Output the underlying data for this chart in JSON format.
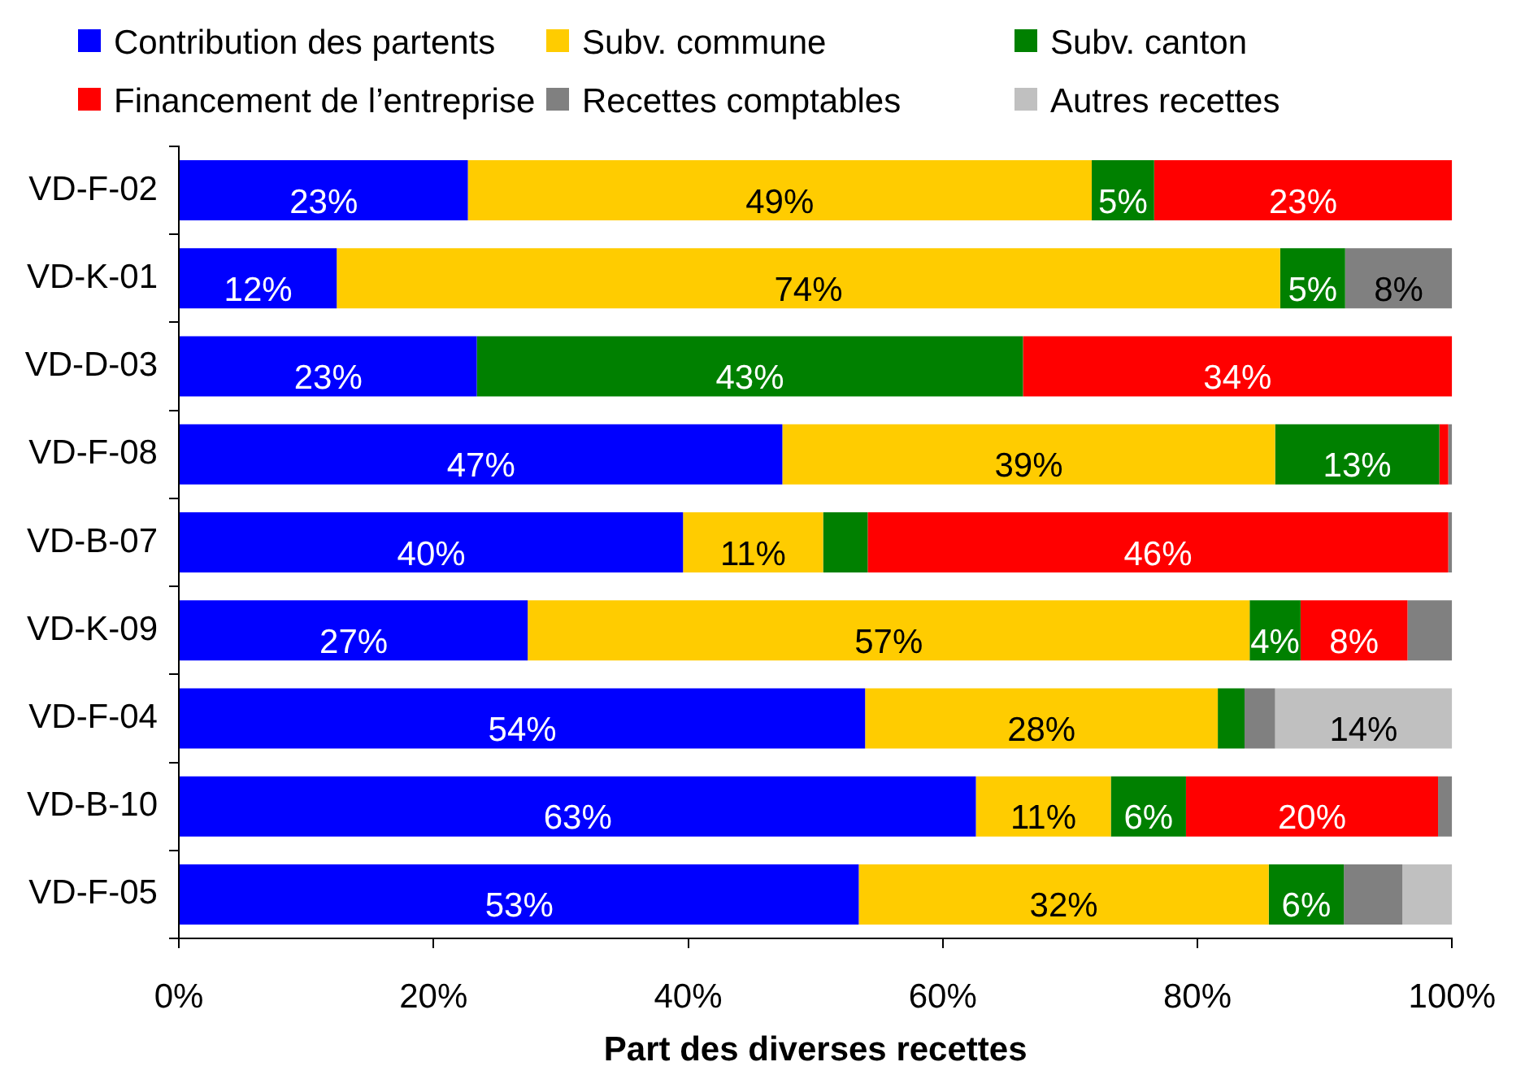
{
  "chart_data": {
    "type": "bar",
    "orientation": "horizontal",
    "stacked": true,
    "xlabel": "Part des diverses recettes",
    "legend": "top",
    "categories": [
      "VD-F-02",
      "VD-K-01",
      "VD-D-03",
      "VD-F-08",
      "VD-B-07",
      "VD-K-09",
      "VD-F-04",
      "VD-B-10",
      "VD-F-05"
    ],
    "xlim": [
      0,
      100
    ],
    "xticks": [
      {
        "value": 0,
        "label": "0%"
      },
      {
        "value": 20,
        "label": "20%"
      },
      {
        "value": 40,
        "label": "40%"
      },
      {
        "value": 60,
        "label": "60%"
      },
      {
        "value": 80,
        "label": "80%"
      },
      {
        "value": 100,
        "label": "100%"
      }
    ],
    "series": [
      {
        "name": "Contribution des partents",
        "color": "#0000ff",
        "values": [
          22.7,
          12.4,
          23.4,
          47.4,
          39.6,
          27.4,
          53.9,
          62.6,
          53.4
        ],
        "value_labels": [
          "23%",
          "12%",
          "23%",
          "47%",
          "40%",
          "27%",
          "54%",
          "63%",
          "53%"
        ]
      },
      {
        "name": "Subv. commune",
        "color": "#ffcc00",
        "values": [
          49,
          74.1,
          null,
          38.7,
          11,
          56.7,
          27.7,
          10.6,
          32.2
        ],
        "value_labels": [
          "49%",
          "74%",
          null,
          "39%",
          "11%",
          "57%",
          "28%",
          "11%",
          "32%"
        ]
      },
      {
        "name": "Subv. canton",
        "color": "#008000",
        "values": [
          4.9,
          5.1,
          42.9,
          12.9,
          3.5,
          4,
          2.1,
          5.9,
          5.9
        ],
        "value_labels": [
          "5%",
          "5%",
          "43%",
          "13%",
          null,
          "4%",
          null,
          "6%",
          "6%"
        ]
      },
      {
        "name": "Financement de l’entreprise",
        "color": "#ff0000",
        "values": [
          23.4,
          null,
          33.7,
          0.7,
          45.6,
          8.4,
          null,
          19.8,
          null
        ],
        "value_labels": [
          "23%",
          null,
          "34%",
          null,
          "46%",
          "8%",
          null,
          "20%",
          null
        ]
      },
      {
        "name": "Recettes comptables",
        "color": "#808080",
        "values": [
          null,
          8.4,
          null,
          0.3,
          0.3,
          3.5,
          2.4,
          1.1,
          4.6
        ],
        "value_labels": [
          null,
          "8%",
          null,
          null,
          null,
          null,
          null,
          null,
          null
        ]
      },
      {
        "name": "Autres recettes",
        "color": "#c0c0c0",
        "values": [
          null,
          null,
          null,
          null,
          null,
          null,
          13.9,
          null,
          3.9
        ],
        "value_labels": [
          null,
          null,
          null,
          null,
          null,
          null,
          "14%",
          null,
          null
        ]
      }
    ]
  }
}
